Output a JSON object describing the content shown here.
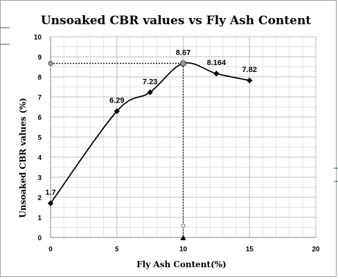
{
  "chart_data": {
    "type": "scatter",
    "title": "Unsoaked CBR values vs Fly Ash Content",
    "xlabel": "Fly Ash Content(%)",
    "ylabel": "Unsoaked CBR values (%)",
    "xlim": [
      0,
      20
    ],
    "ylim": [
      0,
      10
    ],
    "x_ticks": [
      0,
      5,
      10,
      15,
      20
    ],
    "y_ticks": [
      0,
      1,
      2,
      3,
      4,
      5,
      6,
      7,
      8,
      9,
      10
    ],
    "grid": true,
    "legend": "none",
    "series": [
      {
        "points": [
          {
            "x": 0,
            "y": 1.7,
            "label": "1.7"
          },
          {
            "x": 5,
            "y": 6.29,
            "label": "6.29"
          },
          {
            "x": 7.5,
            "y": 7.23,
            "label": "7.23"
          },
          {
            "x": 10,
            "y": 8.67,
            "label": "8.67"
          },
          {
            "x": 12.5,
            "y": 8.164,
            "label": "8.164"
          },
          {
            "x": 15,
            "y": 7.82,
            "label": "7.82"
          }
        ],
        "line": "smooth",
        "marker": "diamond",
        "color": "#000000"
      }
    ],
    "reference_lines": {
      "optimum_x": 10,
      "optimum_y": 8.67,
      "style": "dotted"
    }
  }
}
